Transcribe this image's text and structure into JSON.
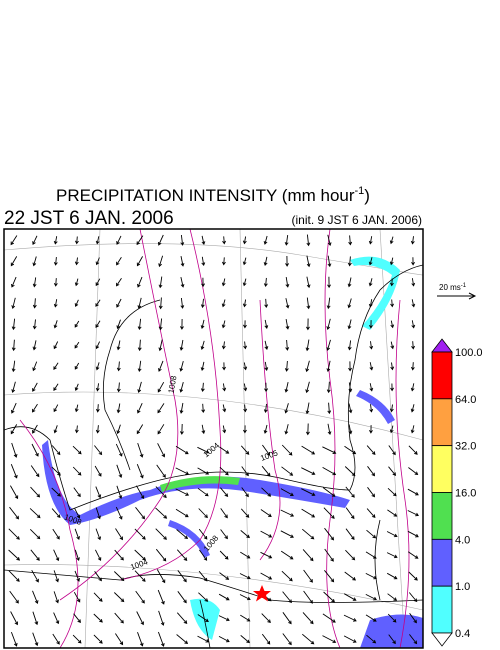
{
  "header": {
    "title": "PRECIPITATION INTENSITY (mm hour",
    "title_superscript": "-1",
    "title_close": ")",
    "valid_time": "22 JST 6 JAN. 2006",
    "init_time": "(init. 9 JST 6 JAN. 2006)"
  },
  "reference_vector": {
    "label": "20 ms",
    "superscript": "-1"
  },
  "colorbar": {
    "levels": [
      "100.0",
      "64.0",
      "32.0",
      "16.0",
      "4.0",
      "1.0",
      "0.4"
    ],
    "colors": [
      "#a020f0",
      "#ff0000",
      "#ffa040",
      "#ffff60",
      "#50e050",
      "#6060ff",
      "#50ffff",
      "#ffffff"
    ]
  },
  "isobar_labels": [
    "1008",
    "1004",
    "1005",
    "1008",
    "1004",
    "1008"
  ]
}
